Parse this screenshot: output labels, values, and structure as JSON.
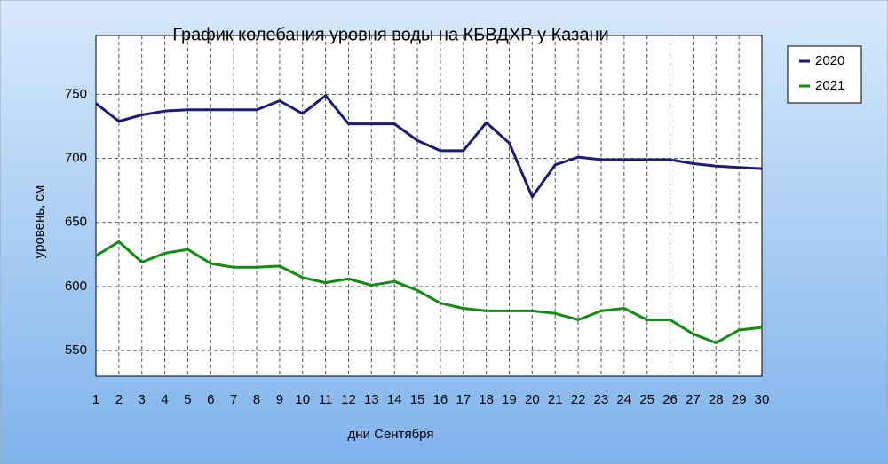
{
  "chart_data": {
    "type": "line",
    "title": "График колебания уровня воды на КБВДХР у Казани",
    "x_label": "дни Сентября",
    "y_label": "уровень, см",
    "categories": [
      "1",
      "2",
      "3",
      "4",
      "5",
      "6",
      "7",
      "8",
      "9",
      "10",
      "11",
      "12",
      "13",
      "14",
      "15",
      "16",
      "17",
      "18",
      "19",
      "20",
      "21",
      "22",
      "23",
      "24",
      "25",
      "26",
      "27",
      "28",
      "29",
      "30"
    ],
    "series": [
      {
        "name": "2020",
        "color": "#1a1a78",
        "values": [
          743,
          729,
          734,
          737,
          738,
          738,
          738,
          738,
          745,
          735,
          749,
          727,
          727,
          727,
          714,
          706,
          706,
          728,
          712,
          670,
          695,
          701,
          699,
          699,
          699,
          699,
          696,
          694,
          693,
          692
        ]
      },
      {
        "name": "2021",
        "color": "#138a13",
        "values": [
          624,
          635,
          619,
          626,
          629,
          618,
          615,
          615,
          616,
          607,
          603,
          606,
          601,
          604,
          597,
          587,
          583,
          581,
          581,
          581,
          579,
          574,
          581,
          583,
          574,
          574,
          563,
          556,
          566,
          568
        ]
      }
    ],
    "ylim": [
      530,
      796
    ],
    "yticks": [
      550,
      600,
      650,
      700,
      750
    ],
    "grid": true,
    "legend": "top-right"
  }
}
